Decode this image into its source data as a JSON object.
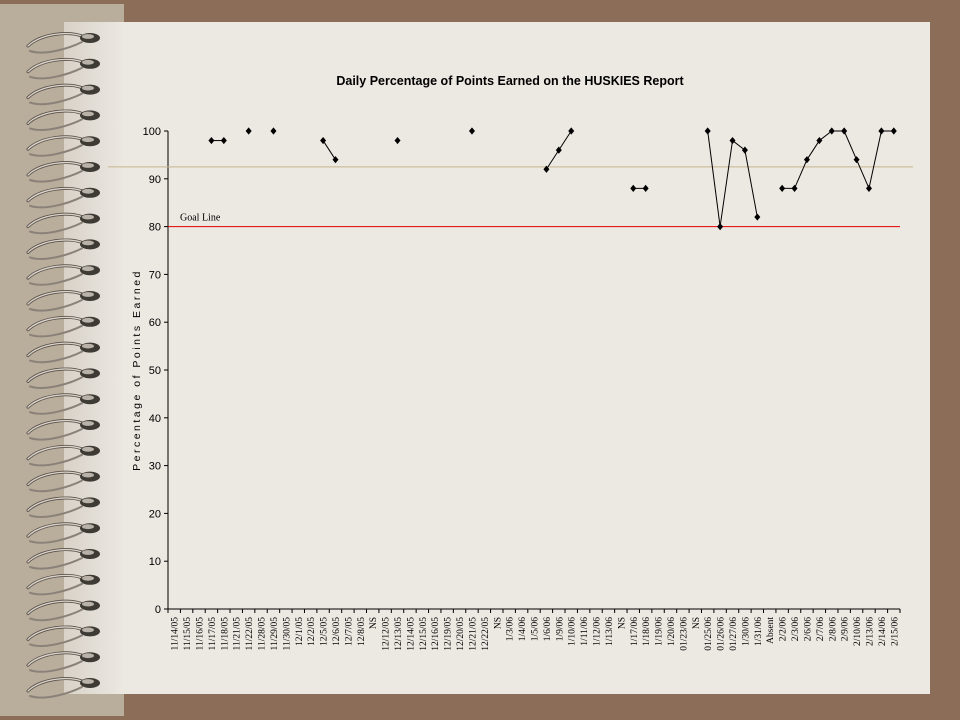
{
  "colors": {
    "background": "#8c6e58",
    "paper": "#ece8e2",
    "goal_line": "#e00000",
    "reference_line": "#c8b48c",
    "series": "#000000"
  },
  "icons": [
    "spiral-binding-ring"
  ],
  "chart_data": {
    "type": "line",
    "title": "Daily Percentage of Points Earned on the HUSKIES Report",
    "xlabel": "",
    "ylabel": "Percentage of Points Earned",
    "ylim": [
      0,
      100
    ],
    "yticks": [
      0,
      10,
      20,
      30,
      40,
      50,
      60,
      70,
      80,
      90,
      100
    ],
    "grid": false,
    "legend": "none",
    "categories": [
      "11/14/05",
      "11/15/05",
      "11/16/05",
      "11/17/05",
      "11/18/05",
      "11/21/05",
      "11/22/05",
      "11/28/05",
      "11/29/05",
      "11/30/05",
      "12/1/05",
      "12/2/05",
      "12/5/05",
      "12/6/05",
      "12/7/05",
      "12/8/05",
      "NS",
      "12/12/05",
      "12/13/05",
      "12/14/05",
      "12/15/05",
      "12/16/05",
      "12/19/05",
      "12/20/05",
      "12/21/05",
      "12/22/05",
      "NS",
      "1/3/06",
      "1/4/06",
      "1/5/06",
      "1/6/06",
      "1/9/06",
      "1/10/06",
      "1/11/06",
      "1/12/06",
      "1/13/06",
      "NS",
      "1/17/06",
      "1/18/06",
      "1/19/06",
      "1/20/06",
      "01/23/06",
      "NS",
      "01/25/06",
      "01/26/06",
      "01/27/06",
      "1/30/06",
      "1/31/06",
      "Absent",
      "2/2/06",
      "2/3/06",
      "2/6/06",
      "2/7/06",
      "2/8/06",
      "2/9/06",
      "2/10/06",
      "2/13/06",
      "2/14/06",
      "2/15/06"
    ],
    "series": [
      {
        "values": [
          null,
          null,
          null,
          98,
          98,
          null,
          100,
          null,
          100,
          null,
          null,
          null,
          98,
          94,
          null,
          null,
          null,
          null,
          98,
          null,
          null,
          null,
          null,
          null,
          100,
          null,
          null,
          null,
          null,
          null,
          92,
          96,
          100,
          null,
          null,
          null,
          null,
          88,
          88,
          null,
          null,
          null,
          null,
          100,
          80,
          98,
          96,
          82,
          null,
          88,
          88,
          94,
          98,
          100,
          100,
          94,
          88,
          100,
          100
        ]
      }
    ],
    "reference_lines": [
      {
        "label": "Goal Line",
        "value": 80
      },
      {
        "label": "",
        "value": 92.5
      }
    ]
  }
}
